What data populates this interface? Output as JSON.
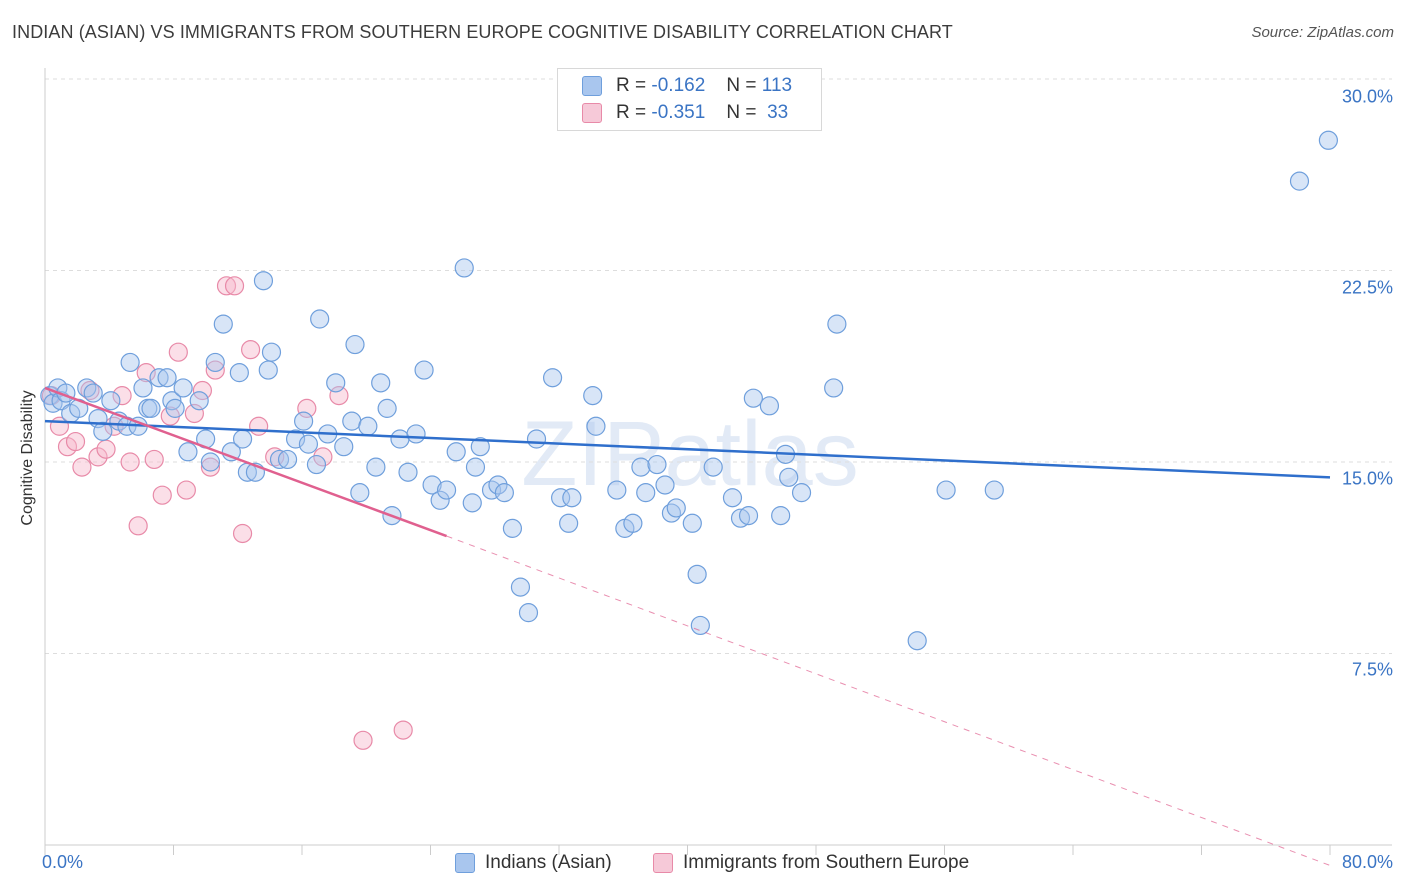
{
  "title": "INDIAN (ASIAN) VS IMMIGRANTS FROM SOUTHERN EUROPE COGNITIVE DISABILITY CORRELATION CHART",
  "source": "Source: ZipAtlas.com",
  "watermark": "ZIPatlas",
  "colors": {
    "blue_fill": "#a9c6ee",
    "blue_stroke": "#6f9fdc",
    "blue_line": "#2f6fcc",
    "pink_fill": "#f6b8cb",
    "pink_stroke": "#e88aa8",
    "pink_line": "#e0608f",
    "tick_text": "#3a74c4",
    "grid": "#dddddd"
  },
  "legend_top": [
    {
      "r_label": "R =",
      "r_value": "-0.162",
      "n_label": "N =",
      "n_value": "113"
    },
    {
      "r_label": "R =",
      "r_value": "-0.351",
      "n_label": "N =",
      "n_value": "33"
    }
  ],
  "chart_data": {
    "type": "scatter",
    "title": "INDIAN (ASIAN) VS IMMIGRANTS FROM SOUTHERN EUROPE COGNITIVE DISABILITY CORRELATION CHART",
    "xlabel": "",
    "ylabel": "Cognitive Disability",
    "xlim": [
      0,
      80
    ],
    "ylim": [
      0,
      30.5
    ],
    "x_tick_labels": [
      "0.0%",
      "80.0%"
    ],
    "y_ticks": [
      7.5,
      15.0,
      22.5,
      30.0
    ],
    "y_tick_labels": [
      "7.5%",
      "15.0%",
      "22.5%",
      "30.0%"
    ],
    "grid": "horizontal-dashed",
    "legend_position": "bottom",
    "series": [
      {
        "name": "Indians (Asian)",
        "color": "#a9c6ee",
        "points": [
          [
            0.3,
            17.6
          ],
          [
            0.5,
            17.3
          ],
          [
            0.8,
            17.9
          ],
          [
            1.0,
            17.4
          ],
          [
            1.3,
            17.7
          ],
          [
            1.6,
            16.9
          ],
          [
            2.1,
            17.1
          ],
          [
            2.6,
            17.9
          ],
          [
            3.0,
            17.7
          ],
          [
            3.3,
            16.7
          ],
          [
            3.6,
            16.2
          ],
          [
            4.1,
            17.4
          ],
          [
            4.6,
            16.6
          ],
          [
            5.1,
            16.4
          ],
          [
            5.3,
            18.9
          ],
          [
            5.8,
            16.4
          ],
          [
            6.1,
            17.9
          ],
          [
            6.4,
            17.1
          ],
          [
            6.6,
            17.1
          ],
          [
            7.1,
            18.3
          ],
          [
            7.6,
            18.3
          ],
          [
            7.9,
            17.4
          ],
          [
            8.1,
            17.1
          ],
          [
            8.6,
            17.9
          ],
          [
            8.9,
            15.4
          ],
          [
            9.6,
            17.4
          ],
          [
            10.0,
            15.9
          ],
          [
            10.3,
            15.0
          ],
          [
            10.6,
            18.9
          ],
          [
            11.1,
            20.4
          ],
          [
            11.6,
            15.4
          ],
          [
            12.1,
            18.5
          ],
          [
            12.3,
            15.9
          ],
          [
            12.6,
            14.6
          ],
          [
            13.1,
            14.6
          ],
          [
            13.6,
            22.1
          ],
          [
            13.9,
            18.6
          ],
          [
            14.1,
            19.3
          ],
          [
            14.6,
            15.1
          ],
          [
            15.1,
            15.1
          ],
          [
            15.6,
            15.9
          ],
          [
            16.1,
            16.6
          ],
          [
            16.4,
            15.7
          ],
          [
            16.9,
            14.9
          ],
          [
            17.1,
            20.6
          ],
          [
            17.6,
            16.1
          ],
          [
            18.1,
            18.1
          ],
          [
            18.6,
            15.6
          ],
          [
            19.1,
            16.6
          ],
          [
            19.3,
            19.6
          ],
          [
            19.6,
            13.8
          ],
          [
            20.1,
            16.4
          ],
          [
            20.6,
            14.8
          ],
          [
            20.9,
            18.1
          ],
          [
            21.3,
            17.1
          ],
          [
            21.6,
            12.9
          ],
          [
            22.1,
            15.9
          ],
          [
            22.6,
            14.6
          ],
          [
            23.1,
            16.1
          ],
          [
            23.6,
            18.6
          ],
          [
            24.1,
            14.1
          ],
          [
            24.6,
            13.5
          ],
          [
            25.0,
            13.9
          ],
          [
            25.6,
            15.4
          ],
          [
            26.1,
            22.6
          ],
          [
            26.6,
            13.4
          ],
          [
            26.8,
            14.8
          ],
          [
            27.1,
            15.6
          ],
          [
            27.8,
            13.9
          ],
          [
            28.2,
            14.1
          ],
          [
            28.6,
            13.8
          ],
          [
            29.1,
            12.4
          ],
          [
            29.6,
            10.1
          ],
          [
            30.1,
            9.1
          ],
          [
            30.6,
            15.9
          ],
          [
            31.6,
            18.3
          ],
          [
            32.1,
            13.6
          ],
          [
            32.6,
            12.6
          ],
          [
            32.8,
            13.6
          ],
          [
            34.1,
            17.6
          ],
          [
            34.3,
            16.4
          ],
          [
            35.6,
            13.9
          ],
          [
            36.1,
            12.4
          ],
          [
            36.6,
            12.6
          ],
          [
            37.1,
            14.8
          ],
          [
            37.4,
            13.8
          ],
          [
            38.1,
            14.9
          ],
          [
            38.6,
            14.1
          ],
          [
            39.0,
            13.0
          ],
          [
            39.3,
            13.2
          ],
          [
            40.3,
            12.6
          ],
          [
            40.6,
            10.6
          ],
          [
            40.8,
            8.6
          ],
          [
            41.6,
            14.8
          ],
          [
            42.8,
            13.6
          ],
          [
            43.3,
            12.8
          ],
          [
            43.8,
            12.9
          ],
          [
            44.1,
            17.5
          ],
          [
            45.1,
            17.2
          ],
          [
            45.8,
            12.9
          ],
          [
            46.1,
            15.3
          ],
          [
            46.3,
            14.4
          ],
          [
            47.1,
            13.8
          ],
          [
            49.1,
            17.9
          ],
          [
            49.3,
            20.4
          ],
          [
            54.3,
            8.0
          ],
          [
            56.1,
            13.9
          ],
          [
            59.1,
            13.9
          ],
          [
            78.1,
            26.0
          ],
          [
            79.9,
            27.6
          ]
        ]
      },
      {
        "name": "Immigrants from Southern Europe",
        "color": "#f6b8cb",
        "points": [
          [
            0.4,
            17.6
          ],
          [
            0.9,
            16.4
          ],
          [
            1.4,
            15.6
          ],
          [
            1.9,
            15.8
          ],
          [
            2.3,
            14.8
          ],
          [
            2.8,
            17.8
          ],
          [
            3.3,
            15.2
          ],
          [
            3.8,
            15.5
          ],
          [
            4.3,
            16.4
          ],
          [
            4.8,
            17.6
          ],
          [
            5.3,
            15.0
          ],
          [
            5.8,
            12.5
          ],
          [
            6.3,
            18.5
          ],
          [
            6.8,
            15.1
          ],
          [
            7.3,
            13.7
          ],
          [
            7.8,
            16.8
          ],
          [
            8.3,
            19.3
          ],
          [
            8.8,
            13.9
          ],
          [
            9.3,
            16.9
          ],
          [
            9.8,
            17.8
          ],
          [
            10.3,
            14.8
          ],
          [
            11.3,
            21.9
          ],
          [
            11.8,
            21.9
          ],
          [
            12.3,
            12.2
          ],
          [
            12.8,
            19.4
          ],
          [
            13.3,
            16.4
          ],
          [
            14.3,
            15.2
          ],
          [
            16.3,
            17.1
          ],
          [
            17.3,
            15.2
          ],
          [
            18.3,
            17.6
          ],
          [
            19.8,
            4.1
          ],
          [
            22.3,
            4.5
          ],
          [
            10.6,
            18.6
          ]
        ]
      }
    ],
    "trend_lines": [
      {
        "series": "Indians (Asian)",
        "x": [
          0,
          80
        ],
        "y": [
          16.6,
          14.4
        ],
        "style": "solid"
      },
      {
        "series": "Immigrants from Southern Europe",
        "x": [
          0,
          25
        ],
        "y": [
          17.9,
          12.1
        ],
        "style": "solid"
      },
      {
        "series": "Immigrants from Southern Europe",
        "x": [
          25,
          80
        ],
        "y": [
          12.1,
          -0.8
        ],
        "style": "dashed"
      }
    ]
  }
}
